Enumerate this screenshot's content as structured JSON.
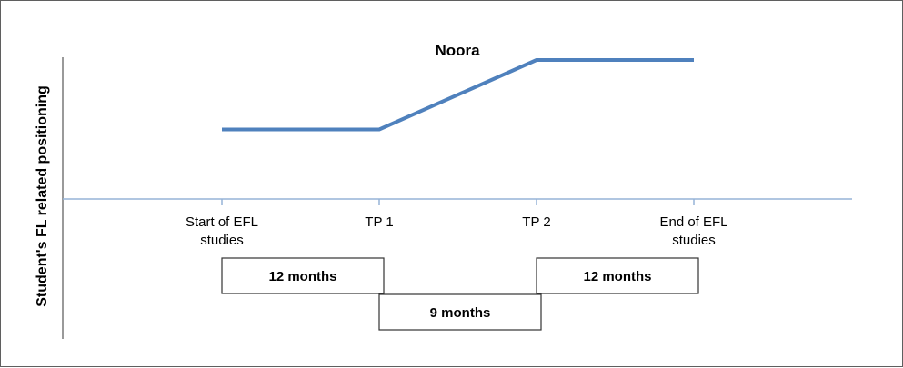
{
  "chart_data": {
    "type": "line",
    "title": "Noora",
    "xlabel": "",
    "ylabel": "Student's FL related positioning",
    "categories": [
      "Start of EFL studies",
      "TP 1",
      "TP 2",
      "End of EFL studies"
    ],
    "tick_labels": [
      [
        "Start of EFL",
        "studies"
      ],
      [
        "TP 1"
      ],
      [
        "TP 2"
      ],
      [
        "End of EFL",
        "studies"
      ]
    ],
    "series": [
      {
        "values": [
          1,
          1,
          2,
          2
        ]
      }
    ],
    "ylim": [
      0,
      2
    ],
    "grid": false,
    "line_color": "#4f81bd",
    "axis_color": "#95b3d7",
    "durations": [
      {
        "label": "12 months",
        "from": 0,
        "to": 1,
        "row": 1
      },
      {
        "label": "9 months",
        "from": 1,
        "to": 2,
        "row": 2
      },
      {
        "label": "12 months",
        "from": 2,
        "to": 3,
        "row": 1
      }
    ]
  }
}
